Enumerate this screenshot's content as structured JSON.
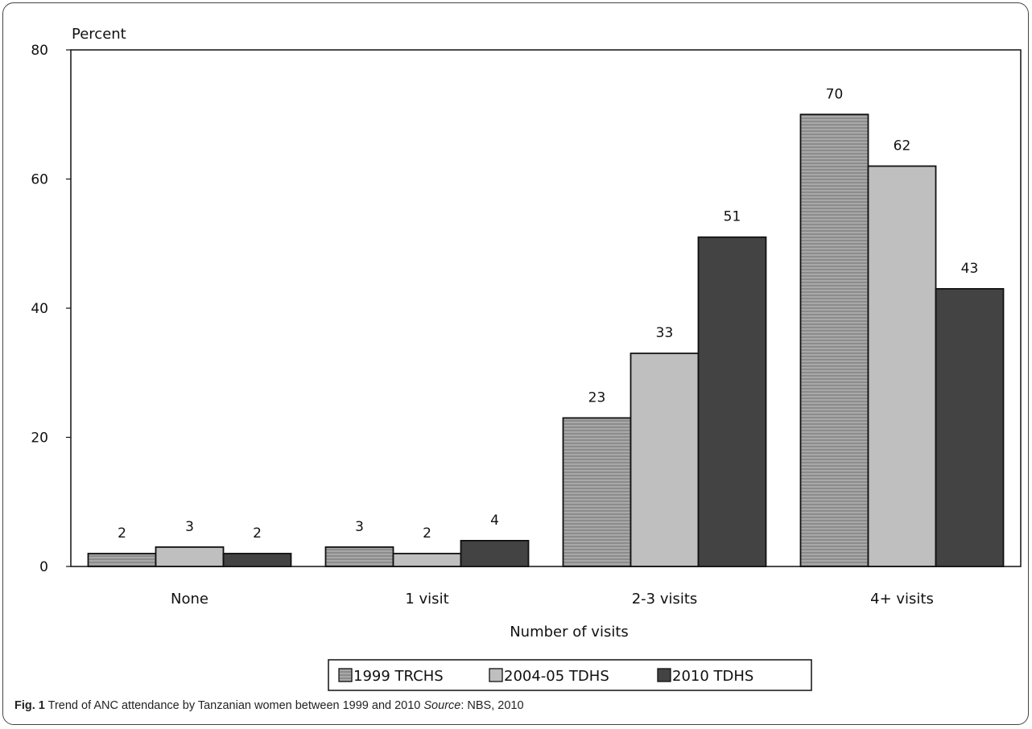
{
  "chart_data": {
    "type": "bar",
    "categories": [
      "None",
      "1 visit",
      "2-3 visits",
      "4+ visits"
    ],
    "series": [
      {
        "name": "1999 TRCHS",
        "values": [
          2,
          3,
          23,
          70
        ],
        "color": "#9a9a9a",
        "pattern": "horizontal-stripes"
      },
      {
        "name": "2004-05 TDHS",
        "values": [
          3,
          2,
          33,
          62
        ],
        "color": "#bfbfbf"
      },
      {
        "name": "2010 TDHS",
        "values": [
          2,
          4,
          51,
          43
        ],
        "color": "#434343"
      }
    ],
    "ylabel": "Percent",
    "xlabel": "Number of visits",
    "ylim": [
      0,
      80
    ],
    "yticks": [
      0,
      20,
      40,
      60,
      80
    ],
    "grid": false,
    "legend_position": "bottom"
  },
  "caption": {
    "fig_label": "Fig. 1",
    "text": " Trend of ANC attendance by Tanzanian women between 1999 and 2010 ",
    "source_label": "Source",
    "source_text": ": NBS, 2010"
  }
}
